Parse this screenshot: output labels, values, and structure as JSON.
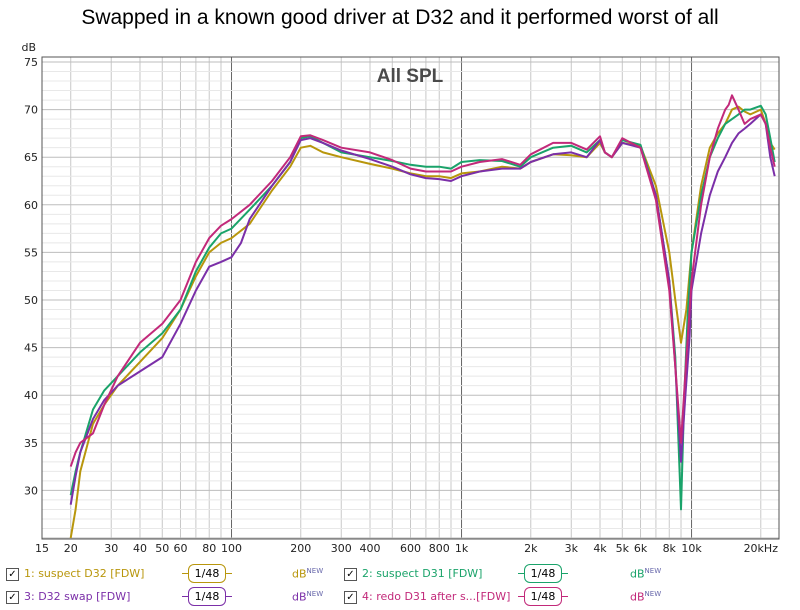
{
  "title": "Swapped in a known good driver at D32 and it performed worst of all",
  "chart_data": {
    "type": "line",
    "inner_title": "All SPL",
    "ylabel": "dB",
    "xscale": "log",
    "xlim": [
      15,
      24000
    ],
    "ylim": [
      25,
      75
    ],
    "y_ticks": [
      30,
      35,
      40,
      45,
      50,
      55,
      60,
      65,
      70,
      75
    ],
    "x_ticks": [
      {
        "v": 15,
        "label": "15"
      },
      {
        "v": 20,
        "label": "20"
      },
      {
        "v": 30,
        "label": "30"
      },
      {
        "v": 40,
        "label": "40"
      },
      {
        "v": 50,
        "label": "50"
      },
      {
        "v": 60,
        "label": "60"
      },
      {
        "v": 80,
        "label": "80"
      },
      {
        "v": 100,
        "label": "100"
      },
      {
        "v": 200,
        "label": "200"
      },
      {
        "v": 300,
        "label": "300"
      },
      {
        "v": 400,
        "label": "400"
      },
      {
        "v": 600,
        "label": "600"
      },
      {
        "v": 800,
        "label": "800"
      },
      {
        "v": 1000,
        "label": "1k"
      },
      {
        "v": 2000,
        "label": "2k"
      },
      {
        "v": 3000,
        "label": "3k"
      },
      {
        "v": 4000,
        "label": "4k"
      },
      {
        "v": 5000,
        "label": "5k"
      },
      {
        "v": 6000,
        "label": "6k"
      },
      {
        "v": 8000,
        "label": "8k"
      },
      {
        "v": 10000,
        "label": "10k"
      },
      {
        "v": 20000,
        "label": "20kHz"
      }
    ],
    "grid": true,
    "series": [
      {
        "name": "1: suspect D32 [FDW]",
        "color": "#b8960c",
        "x": [
          20,
          21,
          22,
          25,
          28,
          32,
          40,
          50,
          60,
          70,
          80,
          90,
          100,
          120,
          150,
          180,
          200,
          220,
          250,
          300,
          400,
          500,
          600,
          700,
          800,
          900,
          1000,
          1200,
          1500,
          1800,
          2000,
          2500,
          3000,
          3500,
          4000,
          4200,
          4500,
          5000,
          6000,
          7000,
          8000,
          8500,
          9000,
          9500,
          10000,
          11000,
          12000,
          13000,
          14000,
          15000,
          16000,
          17000,
          18000,
          20000,
          21000,
          22000,
          23000
        ],
        "y": [
          25,
          28,
          32,
          37,
          39,
          41,
          43.5,
          46,
          49,
          52.5,
          55,
          56,
          56.5,
          58,
          61.5,
          64,
          66,
          66.2,
          65.5,
          65,
          64.3,
          63.8,
          63.3,
          63,
          63,
          62.8,
          63.3,
          63.5,
          64,
          63.8,
          64.5,
          65.3,
          65.2,
          65,
          66.5,
          65.5,
          65,
          66.5,
          66.2,
          62,
          55,
          50,
          45.5,
          49,
          55,
          62,
          66,
          67.5,
          68.5,
          70,
          70.3,
          69.8,
          69.5,
          70,
          68.5,
          66.5,
          65.8
        ]
      },
      {
        "name": "2: suspect D31 [FDW]",
        "color": "#1aa36a",
        "x": [
          20,
          21,
          22,
          25,
          28,
          32,
          40,
          50,
          60,
          70,
          80,
          90,
          100,
          120,
          150,
          180,
          200,
          220,
          250,
          300,
          400,
          500,
          600,
          700,
          800,
          900,
          1000,
          1200,
          1500,
          1800,
          2000,
          2500,
          3000,
          3500,
          4000,
          4200,
          4500,
          5000,
          6000,
          7000,
          8000,
          8500,
          9000,
          9300,
          9600,
          10000,
          11000,
          12000,
          13000,
          14000,
          15000,
          16000,
          17000,
          18000,
          20000,
          21000,
          22000,
          23000
        ],
        "y": [
          29.5,
          32,
          34,
          38.5,
          40.5,
          42,
          44.5,
          46.5,
          49,
          53,
          55.5,
          57,
          57.5,
          59.5,
          62,
          64.5,
          67,
          67.2,
          66.5,
          65.5,
          65,
          64.6,
          64.2,
          64,
          64,
          63.8,
          64.5,
          64.7,
          64.6,
          64,
          65,
          66,
          66.2,
          65.5,
          66.8,
          65.5,
          65,
          66.8,
          66.3,
          61,
          52,
          44,
          28,
          40,
          48,
          55,
          61,
          65,
          67,
          68.5,
          69,
          69.5,
          70,
          70,
          70.4,
          69.5,
          67,
          64.5
        ]
      },
      {
        "name": "3: D32 swap [FDW]",
        "color": "#7b2fa8",
        "x": [
          20,
          21,
          22,
          25,
          28,
          32,
          40,
          50,
          60,
          70,
          80,
          90,
          100,
          110,
          120,
          150,
          180,
          200,
          220,
          250,
          300,
          400,
          500,
          600,
          700,
          800,
          900,
          1000,
          1200,
          1500,
          1800,
          2000,
          2500,
          3000,
          3500,
          4000,
          4200,
          4500,
          5000,
          6000,
          7000,
          8000,
          8500,
          9000,
          9400,
          9800,
          10000,
          11000,
          12000,
          13000,
          14000,
          15000,
          16000,
          17000,
          18000,
          20000,
          21000,
          22000,
          23000
        ],
        "y": [
          28.5,
          31.5,
          34,
          37.5,
          39.5,
          41,
          42.5,
          44,
          47.5,
          51,
          53.5,
          54,
          54.5,
          56,
          58.5,
          62,
          64.5,
          66.8,
          67,
          66.5,
          65.7,
          64.8,
          64,
          63.2,
          62.8,
          62.7,
          62.5,
          63,
          63.5,
          63.8,
          63.8,
          64.5,
          65.3,
          65.5,
          65,
          66.8,
          65.5,
          65,
          66.5,
          66,
          61,
          52,
          43,
          33,
          40,
          46,
          51,
          57,
          61,
          63.5,
          65,
          66.5,
          67.5,
          68,
          68.5,
          69.5,
          68.5,
          65,
          63
        ]
      },
      {
        "name": "4: redo D31 after s...[FDW]",
        "color": "#c2297a",
        "x": [
          20,
          21,
          22,
          25,
          28,
          32,
          40,
          50,
          60,
          70,
          80,
          90,
          100,
          120,
          150,
          180,
          200,
          220,
          250,
          300,
          400,
          500,
          600,
          700,
          800,
          900,
          1000,
          1200,
          1500,
          1800,
          2000,
          2500,
          3000,
          3500,
          4000,
          4200,
          4500,
          5000,
          6000,
          7000,
          8000,
          8500,
          9000,
          9500,
          10000,
          11000,
          12000,
          13000,
          14000,
          14500,
          15000,
          16000,
          17000,
          18000,
          20000,
          21000,
          22000,
          23000
        ],
        "y": [
          32.5,
          34,
          35,
          36,
          39,
          42,
          45.5,
          47.5,
          50,
          54,
          56.5,
          57.8,
          58.5,
          60,
          62.5,
          65,
          67.2,
          67.3,
          66.8,
          66,
          65.5,
          64.7,
          63.8,
          63.5,
          63.5,
          63.5,
          64,
          64.5,
          64.8,
          64.2,
          65.3,
          66.5,
          66.5,
          65.8,
          67.2,
          65.5,
          65,
          67,
          66,
          60.5,
          51,
          43,
          35,
          44,
          52,
          60,
          65,
          68,
          70,
          70.5,
          71.5,
          70,
          68.5,
          69,
          69.5,
          68.5,
          66,
          64
        ]
      }
    ]
  },
  "legend": [
    {
      "check": "✓",
      "label": "1: suspect D32 [FDW]",
      "smoothing": "1/48",
      "unit": "dB",
      "badge": "NEW",
      "color": "#b8960c"
    },
    {
      "check": "✓",
      "label": "2: suspect D31 [FDW]",
      "smoothing": "1/48",
      "unit": "dB",
      "badge": "NEW",
      "color": "#1aa36a"
    },
    {
      "check": "✓",
      "label": "3: D32 swap [FDW]",
      "smoothing": "1/48",
      "unit": "dB",
      "badge": "NEW",
      "color": "#7b2fa8"
    },
    {
      "check": "✓",
      "label": "4: redo D31 after s...[FDW]",
      "smoothing": "1/48",
      "unit": "dB",
      "badge": "NEW",
      "color": "#c2297a"
    }
  ]
}
